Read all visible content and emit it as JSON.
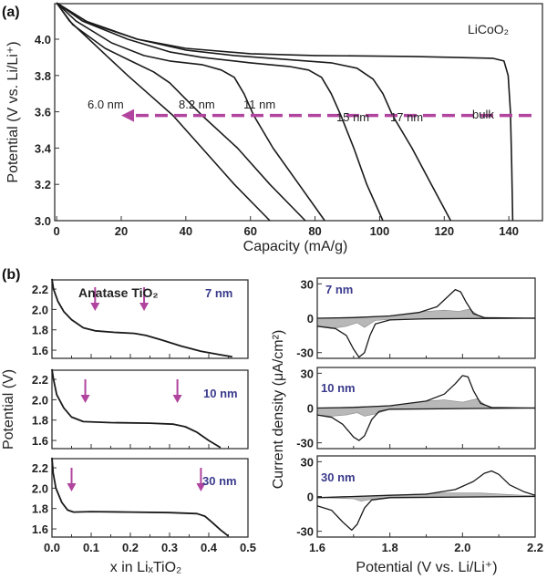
{
  "colors": {
    "curve": "#1a1a1a",
    "arrow": "#b0449e",
    "size_label": "#3a3a8c",
    "shade": "#b8b8b8"
  },
  "chart_data": [
    {
      "id": "a",
      "panel_label": "(a)",
      "type": "line",
      "xlabel": "Capacity (mA/g)",
      "ylabel": "Potential (V vs. Li/Li⁺)",
      "annotation": "LiCoO₂",
      "xlim": [
        0,
        150
      ],
      "ylim": [
        3.0,
        4.2
      ],
      "xticks": [
        0,
        20,
        40,
        60,
        80,
        100,
        120,
        140
      ],
      "yticks": [
        3.0,
        3.2,
        3.4,
        3.6,
        3.8,
        4.0
      ],
      "arrow": {
        "from": [
          147,
          3.58
        ],
        "to": [
          20,
          3.58
        ],
        "style": "dashed"
      },
      "series": [
        {
          "name": "6.0 nm",
          "points": [
            [
              0,
              4.2
            ],
            [
              4,
              4.1
            ],
            [
              10,
              4.0
            ],
            [
              16,
              3.9
            ],
            [
              22,
              3.8
            ],
            [
              29,
              3.69
            ],
            [
              36,
              3.58
            ],
            [
              45,
              3.4
            ],
            [
              55,
              3.2
            ],
            [
              66,
              3.0
            ]
          ]
        },
        {
          "name": "8.2 nm",
          "points": [
            [
              0,
              4.2
            ],
            [
              5,
              4.08
            ],
            [
              15,
              3.95
            ],
            [
              23,
              3.88
            ],
            [
              30,
              3.82
            ],
            [
              35,
              3.76
            ],
            [
              40,
              3.67
            ],
            [
              45,
              3.58
            ],
            [
              56,
              3.4
            ],
            [
              66,
              3.2
            ],
            [
              77,
              3.0
            ]
          ]
        },
        {
          "name": "11 nm",
          "points": [
            [
              0,
              4.2
            ],
            [
              6,
              4.1
            ],
            [
              17,
              3.98
            ],
            [
              27,
              3.91
            ],
            [
              35,
              3.88
            ],
            [
              45,
              3.86
            ],
            [
              51,
              3.83
            ],
            [
              55,
              3.79
            ],
            [
              58,
              3.7
            ],
            [
              61,
              3.58
            ],
            [
              67,
              3.4
            ],
            [
              75,
              3.2
            ],
            [
              83,
              3.0
            ]
          ]
        },
        {
          "name": "15 nm",
          "points": [
            [
              0,
              4.2
            ],
            [
              8,
              4.1
            ],
            [
              22,
              4.0
            ],
            [
              35,
              3.93
            ],
            [
              45,
              3.9
            ],
            [
              60,
              3.87
            ],
            [
              72,
              3.85
            ],
            [
              78,
              3.83
            ],
            [
              82,
              3.79
            ],
            [
              85,
              3.7
            ],
            [
              88,
              3.58
            ],
            [
              92,
              3.4
            ],
            [
              96,
              3.2
            ],
            [
              101,
              3.0
            ]
          ]
        },
        {
          "name": "17 nm",
          "points": [
            [
              0,
              4.2
            ],
            [
              9,
              4.1
            ],
            [
              25,
              4.0
            ],
            [
              40,
              3.94
            ],
            [
              55,
              3.91
            ],
            [
              70,
              3.89
            ],
            [
              85,
              3.87
            ],
            [
              93,
              3.84
            ],
            [
              98,
              3.78
            ],
            [
              101,
              3.7
            ],
            [
              104,
              3.58
            ],
            [
              110,
              3.4
            ],
            [
              116,
              3.2
            ],
            [
              122,
              3.0
            ]
          ]
        },
        {
          "name": "bulk",
          "points": [
            [
              0,
              4.2
            ],
            [
              10,
              4.09
            ],
            [
              25,
              4.0
            ],
            [
              40,
              3.95
            ],
            [
              60,
              3.92
            ],
            [
              80,
              3.91
            ],
            [
              110,
              3.905
            ],
            [
              135,
              3.895
            ],
            [
              138.5,
              3.88
            ],
            [
              139.8,
              3.8
            ],
            [
              140.5,
              3.6
            ],
            [
              140.9,
              3.3
            ],
            [
              141.2,
              3.0
            ]
          ]
        }
      ]
    },
    {
      "id": "b-left",
      "panel_label": "(b)",
      "type": "line",
      "xlabel": "x in LiₓTiO₂",
      "ylabel": "Potential (V)",
      "annotation": "Anatase TiO₂",
      "xlim": [
        0,
        0.5
      ],
      "ylim": [
        1.52,
        2.29
      ],
      "xticks": [
        0.0,
        0.1,
        0.2,
        0.3,
        0.4,
        0.5
      ],
      "yticks": [
        1.6,
        1.8,
        2.0,
        2.2
      ],
      "subplots": [
        {
          "name": "7 nm",
          "arrows_at_x": [
            0.11,
            0.235
          ],
          "points": [
            [
              0,
              2.3
            ],
            [
              0.004,
              2.2
            ],
            [
              0.015,
              2.08
            ],
            [
              0.03,
              1.98
            ],
            [
              0.05,
              1.9
            ],
            [
              0.08,
              1.82
            ],
            [
              0.11,
              1.79
            ],
            [
              0.16,
              1.775
            ],
            [
              0.21,
              1.765
            ],
            [
              0.24,
              1.745
            ],
            [
              0.28,
              1.7
            ],
            [
              0.33,
              1.64
            ],
            [
              0.38,
              1.59
            ],
            [
              0.43,
              1.555
            ],
            [
              0.46,
              1.535
            ]
          ]
        },
        {
          "name": "10 nm",
          "arrows_at_x": [
            0.085,
            0.32
          ],
          "points": [
            [
              0,
              2.3
            ],
            [
              0.004,
              2.2
            ],
            [
              0.012,
              2.05
            ],
            [
              0.03,
              1.92
            ],
            [
              0.05,
              1.83
            ],
            [
              0.08,
              1.785
            ],
            [
              0.15,
              1.775
            ],
            [
              0.25,
              1.77
            ],
            [
              0.31,
              1.76
            ],
            [
              0.34,
              1.735
            ],
            [
              0.37,
              1.68
            ],
            [
              0.4,
              1.6
            ],
            [
              0.43,
              1.53
            ]
          ]
        },
        {
          "name": "30 nm",
          "arrows_at_x": [
            0.05,
            0.38
          ],
          "points": [
            [
              0,
              2.3
            ],
            [
              0.003,
              2.15
            ],
            [
              0.01,
              2.0
            ],
            [
              0.025,
              1.86
            ],
            [
              0.04,
              1.785
            ],
            [
              0.055,
              1.765
            ],
            [
              0.1,
              1.77
            ],
            [
              0.2,
              1.765
            ],
            [
              0.3,
              1.76
            ],
            [
              0.37,
              1.75
            ],
            [
              0.39,
              1.725
            ],
            [
              0.41,
              1.66
            ],
            [
              0.43,
              1.59
            ],
            [
              0.45,
              1.53
            ]
          ]
        }
      ]
    },
    {
      "id": "b-right",
      "type": "line",
      "xlabel": "Potential (V vs. Li/Li⁺)",
      "ylabel": "Current density (μA/cm²)",
      "xlim": [
        1.6,
        2.2
      ],
      "ylim": [
        -35,
        35
      ],
      "xticks": [
        1.6,
        1.8,
        2.0,
        2.2
      ],
      "yticks": [
        -30,
        0,
        30
      ],
      "subplots": [
        {
          "name": "7 nm",
          "anodic": [
            [
              1.6,
              0
            ],
            [
              1.7,
              0.5
            ],
            [
              1.8,
              2
            ],
            [
              1.88,
              5
            ],
            [
              1.93,
              10
            ],
            [
              1.96,
              19
            ],
            [
              1.98,
              25
            ],
            [
              1.995,
              23
            ],
            [
              2.01,
              14
            ],
            [
              2.03,
              4
            ],
            [
              2.06,
              0.5
            ],
            [
              2.2,
              0
            ]
          ],
          "cathodic": [
            [
              1.6,
              -7
            ],
            [
              1.65,
              -9
            ],
            [
              1.68,
              -15
            ],
            [
              1.7,
              -27
            ],
            [
              1.715,
              -34
            ],
            [
              1.73,
              -30
            ],
            [
              1.745,
              -15
            ],
            [
              1.76,
              -5
            ],
            [
              1.8,
              -1.5
            ],
            [
              1.9,
              -0.5
            ],
            [
              2.2,
              0
            ]
          ],
          "shaded": [
            [
              1.6,
              0
            ],
            [
              1.8,
              2
            ],
            [
              1.9,
              6
            ],
            [
              1.95,
              7
            ],
            [
              1.99,
              6
            ],
            [
              2.02,
              8
            ],
            [
              2.05,
              1
            ],
            [
              2.1,
              0
            ],
            [
              2.05,
              -0.5
            ],
            [
              1.8,
              -1
            ],
            [
              1.76,
              -2
            ],
            [
              1.73,
              -8
            ],
            [
              1.71,
              -4
            ],
            [
              1.68,
              -7
            ],
            [
              1.64,
              -9
            ],
            [
              1.6,
              -7
            ]
          ]
        },
        {
          "name": "10 nm",
          "anodic": [
            [
              1.6,
              0
            ],
            [
              1.7,
              0.5
            ],
            [
              1.8,
              2
            ],
            [
              1.9,
              6
            ],
            [
              1.95,
              12
            ],
            [
              1.98,
              21
            ],
            [
              2.0,
              28
            ],
            [
              2.015,
              27
            ],
            [
              2.03,
              15
            ],
            [
              2.05,
              4
            ],
            [
              2.08,
              0.5
            ],
            [
              2.2,
              0
            ]
          ],
          "cathodic": [
            [
              1.6,
              -6
            ],
            [
              1.64,
              -8
            ],
            [
              1.67,
              -14
            ],
            [
              1.7,
              -25
            ],
            [
              1.715,
              -28
            ],
            [
              1.73,
              -24
            ],
            [
              1.75,
              -10
            ],
            [
              1.77,
              -3
            ],
            [
              1.8,
              -1
            ],
            [
              2.2,
              0
            ]
          ],
          "shaded": [
            [
              1.6,
              0
            ],
            [
              1.8,
              2
            ],
            [
              1.9,
              6
            ],
            [
              1.95,
              7
            ],
            [
              2.0,
              5
            ],
            [
              2.04,
              8
            ],
            [
              2.07,
              1
            ],
            [
              2.1,
              0
            ],
            [
              2.05,
              -0.5
            ],
            [
              1.8,
              -1
            ],
            [
              1.76,
              -5
            ],
            [
              1.73,
              -7
            ],
            [
              1.71,
              -4
            ],
            [
              1.68,
              -6
            ],
            [
              1.64,
              -7
            ],
            [
              1.6,
              -6
            ]
          ]
        },
        {
          "name": "30 nm",
          "anodic": [
            [
              1.6,
              -1
            ],
            [
              1.8,
              1
            ],
            [
              1.9,
              2
            ],
            [
              1.98,
              6
            ],
            [
              2.03,
              13
            ],
            [
              2.06,
              20
            ],
            [
              2.08,
              22
            ],
            [
              2.1,
              19
            ],
            [
              2.13,
              10
            ],
            [
              2.17,
              4
            ],
            [
              2.2,
              1
            ]
          ],
          "cathodic": [
            [
              1.6,
              -8
            ],
            [
              1.64,
              -12
            ],
            [
              1.67,
              -22
            ],
            [
              1.695,
              -29
            ],
            [
              1.71,
              -24
            ],
            [
              1.73,
              -10
            ],
            [
              1.75,
              -3
            ],
            [
              1.8,
              -1
            ],
            [
              2.2,
              0
            ]
          ],
          "shaded": [
            [
              1.6,
              -1
            ],
            [
              1.8,
              1
            ],
            [
              1.95,
              3
            ],
            [
              2.05,
              3
            ],
            [
              2.2,
              0.5
            ],
            [
              2.2,
              0
            ],
            [
              1.8,
              -0.5
            ],
            [
              1.76,
              -2
            ],
            [
              1.72,
              -4
            ],
            [
              1.7,
              -2
            ],
            [
              1.6,
              -1
            ]
          ]
        }
      ]
    }
  ]
}
